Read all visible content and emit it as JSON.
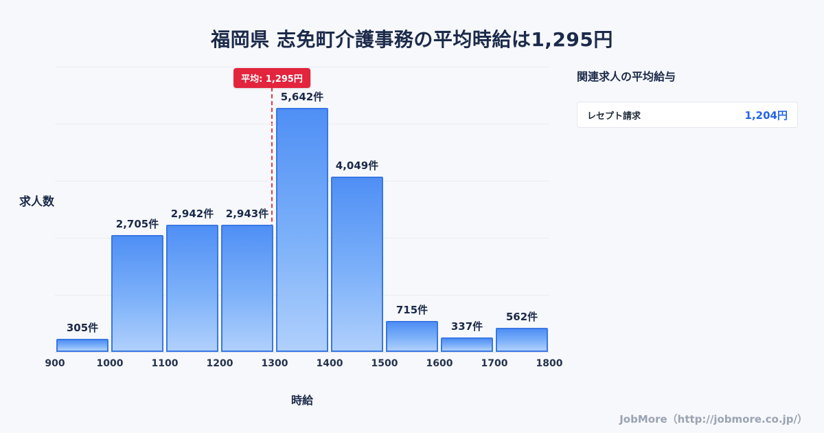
{
  "header": {
    "title": "福岡県 志免町介護事務の平均時給は1,295円"
  },
  "chart_data": {
    "type": "bar",
    "subtype": "histogram",
    "xlabel": "時給",
    "ylabel": "求人数",
    "xmin": 900,
    "xmax": 1800,
    "ylim": [
      0,
      6600
    ],
    "grid": true,
    "x_ticks": [
      "900",
      "1000",
      "1100",
      "1200",
      "1300",
      "1400",
      "1500",
      "1600",
      "1700",
      "1800"
    ],
    "bins": [
      [
        900,
        1000
      ],
      [
        1000,
        1100
      ],
      [
        1100,
        1200
      ],
      [
        1200,
        1300
      ],
      [
        1300,
        1400
      ],
      [
        1400,
        1500
      ],
      [
        1500,
        1600
      ],
      [
        1600,
        1700
      ],
      [
        1700,
        1800
      ]
    ],
    "values": [
      305,
      2705,
      2942,
      2943,
      5642,
      4049,
      715,
      337,
      562
    ],
    "labels": [
      "305件",
      "2,705件",
      "2,942件",
      "2,943件",
      "5,642件",
      "4,049件",
      "715件",
      "337件",
      "562件"
    ],
    "mean": {
      "value": 1295,
      "label": "平均: 1,295円"
    }
  },
  "side_panel": {
    "heading": "関連求人の平均給与",
    "items": [
      {
        "label": "レセプト請求",
        "value": "1,204円"
      }
    ]
  },
  "footer": {
    "credit": "JobMore（http://jobmore.co.jp/）"
  },
  "colors": {
    "bar_fill_top": "#4f8ff5",
    "bar_fill_bottom": "#b0d0fc",
    "bar_border": "#3877e3",
    "mean_red": "#e2243d",
    "value_blue": "#2563eb",
    "title_navy": "#1b2a4a",
    "background": "#f7f8fb"
  }
}
